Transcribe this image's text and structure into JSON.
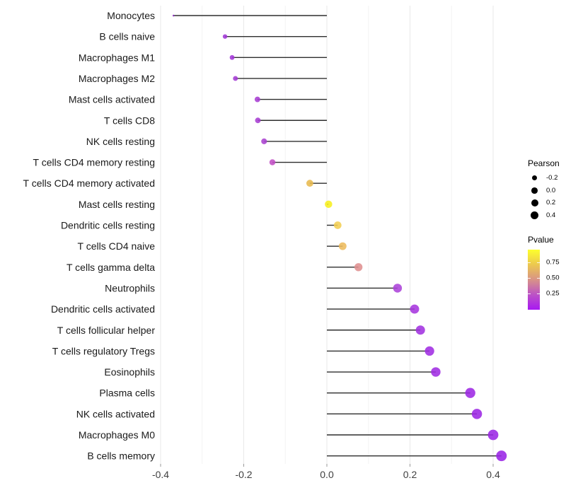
{
  "chart_data": {
    "type": "scatter",
    "variant": "lollipop",
    "title": "",
    "xlabel": "",
    "ylabel": "",
    "grid": true,
    "xlim": [
      -0.41,
      0.46
    ],
    "x_tick_values": [
      -0.4,
      -0.2,
      0.0,
      0.2,
      0.4
    ],
    "x_tick_labels": [
      "-0.4",
      "-0.2",
      "0.0",
      "0.2",
      "0.4"
    ],
    "x_minor_tick_values": [
      -0.3,
      -0.1,
      0.1,
      0.3
    ],
    "size_domain": [
      -0.37,
      0.42
    ],
    "points": [
      {
        "label": "Monocytes",
        "pearson": -0.369,
        "color": "#8B2BBE"
      },
      {
        "label": "B cells naive",
        "pearson": -0.245,
        "color": "#A138D6"
      },
      {
        "label": "Macrophages M1",
        "pearson": -0.228,
        "color": "#A337D8"
      },
      {
        "label": "Macrophages M2",
        "pearson": -0.22,
        "color": "#A43BD4"
      },
      {
        "label": "Mast cells activated",
        "pearson": -0.167,
        "color": "#A73ED3"
      },
      {
        "label": "T cells CD8",
        "pearson": -0.166,
        "color": "#A73ED3"
      },
      {
        "label": "NK cells resting",
        "pearson": -0.151,
        "color": "#AA42D0"
      },
      {
        "label": "T cells CD4 memory resting",
        "pearson": -0.131,
        "color": "#C14FC5"
      },
      {
        "label": "T cells CD4 memory activated",
        "pearson": -0.041,
        "color": "#E8B94F"
      },
      {
        "label": "Mast cells resting",
        "pearson": 0.004,
        "color": "#F7EF1E"
      },
      {
        "label": "Dendritic cells resting",
        "pearson": 0.026,
        "color": "#F2CE52"
      },
      {
        "label": "T cells CD4 naive",
        "pearson": 0.038,
        "color": "#EDBB5C"
      },
      {
        "label": "T cells gamma delta",
        "pearson": 0.076,
        "color": "#DF8F8F"
      },
      {
        "label": "Neutrophils",
        "pearson": 0.17,
        "color": "#AC43DA"
      },
      {
        "label": "Dendritic cells activated",
        "pearson": 0.211,
        "color": "#A636DE"
      },
      {
        "label": "T cells follicular helper",
        "pearson": 0.225,
        "color": "#A232E0"
      },
      {
        "label": "T cells regulatory  Tregs",
        "pearson": 0.247,
        "color": "#A02EE2"
      },
      {
        "label": "Eosinophils",
        "pearson": 0.262,
        "color": "#9F2CE2"
      },
      {
        "label": "Plasma cells",
        "pearson": 0.345,
        "color": "#9D28E4"
      },
      {
        "label": "NK cells activated",
        "pearson": 0.361,
        "color": "#9C27E4"
      },
      {
        "label": "Macrophages M0",
        "pearson": 0.4,
        "color": "#9B26E5"
      },
      {
        "label": "B cells memory",
        "pearson": 0.42,
        "color": "#9A24E6"
      }
    ],
    "legend_position": "right",
    "legends": {
      "size": {
        "title": "Pearson",
        "labels": [
          "-0.2",
          "0.0",
          "0.2",
          "0.4"
        ]
      },
      "color": {
        "title": "Pvalue",
        "tick_labels": [
          "0.75",
          "0.50",
          "0.25"
        ],
        "gradient_stops": [
          "#FDFF2D",
          "#ECC84F",
          "#D89387",
          "#BC52C6",
          "#A818F2"
        ],
        "range": [
          0.0,
          0.95
        ]
      }
    },
    "style_colors": {
      "stem": "#2E2E2E",
      "major_grid": "#E8E8E8",
      "minor_grid": "#F4F4F4",
      "axis_tick": "#999999",
      "x_tick_text": "#404040",
      "y_label_text": "#1A1A1A"
    }
  }
}
